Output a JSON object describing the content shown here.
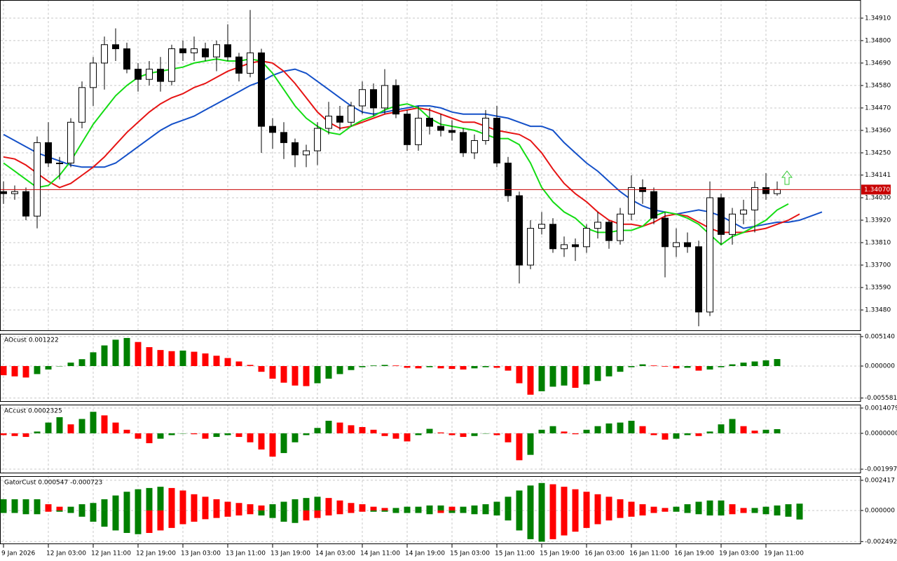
{
  "chart_data": [
    {
      "type": "candlestick",
      "open": [
        1.3406,
        1.3405,
        1.3406,
        1.3394,
        1.343,
        1.342,
        1.342,
        1.344,
        1.3457,
        1.3469,
        1.3478,
        1.3476,
        1.3466,
        1.3461,
        1.3466,
        1.346,
        1.3476,
        1.3474,
        1.3476,
        1.3472,
        1.3478,
        1.3472,
        1.3464,
        1.3474,
        1.3438,
        1.3435,
        1.343,
        1.3424,
        1.3426,
        1.3437,
        1.3443,
        1.344,
        1.3448,
        1.3456,
        1.3447,
        1.3458,
        1.3444,
        1.3429,
        1.3442,
        1.3438,
        1.3436,
        1.3435,
        1.3425,
        1.3431,
        1.3442,
        1.342,
        1.3404,
        1.337,
        1.3388,
        1.339,
        1.3378,
        1.338,
        1.3379,
        1.3388,
        1.3391,
        1.3382,
        1.3395,
        1.3408,
        1.3406,
        1.3393,
        1.3379,
        1.3381,
        1.3379,
        1.3347,
        1.3403,
        1.3385,
        1.3395,
        1.3397,
        1.3408,
        1.3405
      ],
      "high": [
        1.3411,
        1.3409,
        1.3408,
        1.3433,
        1.344,
        1.3423,
        1.3442,
        1.346,
        1.3472,
        1.3482,
        1.3486,
        1.3479,
        1.3469,
        1.347,
        1.3472,
        1.3478,
        1.348,
        1.3482,
        1.3479,
        1.348,
        1.3488,
        1.3474,
        1.3495,
        1.3476,
        1.3442,
        1.344,
        1.3432,
        1.3429,
        1.344,
        1.345,
        1.3448,
        1.345,
        1.346,
        1.3459,
        1.3466,
        1.3461,
        1.3446,
        1.3448,
        1.3447,
        1.3444,
        1.3441,
        1.3437,
        1.3434,
        1.3446,
        1.3448,
        1.3423,
        1.3406,
        1.3392,
        1.3396,
        1.3393,
        1.3384,
        1.3383,
        1.339,
        1.3396,
        1.3392,
        1.3398,
        1.3414,
        1.3412,
        1.3408,
        1.3396,
        1.3388,
        1.3386,
        1.3382,
        1.3411,
        1.3405,
        1.3398,
        1.3402,
        1.3411,
        1.3415,
        1.3411
      ],
      "low": [
        1.34,
        1.3402,
        1.3392,
        1.3388,
        1.3418,
        1.3412,
        1.3418,
        1.3437,
        1.3448,
        1.3456,
        1.347,
        1.3464,
        1.3455,
        1.3458,
        1.3455,
        1.3458,
        1.347,
        1.347,
        1.347,
        1.3465,
        1.347,
        1.346,
        1.3462,
        1.3425,
        1.3427,
        1.3422,
        1.3418,
        1.3418,
        1.3419,
        1.3434,
        1.3436,
        1.3438,
        1.3444,
        1.3443,
        1.3444,
        1.3442,
        1.3426,
        1.3426,
        1.3434,
        1.3433,
        1.3431,
        1.3423,
        1.3422,
        1.3429,
        1.3418,
        1.3401,
        1.3361,
        1.3368,
        1.3385,
        1.3376,
        1.3374,
        1.3372,
        1.3376,
        1.3383,
        1.3378,
        1.338,
        1.3392,
        1.34,
        1.339,
        1.3364,
        1.3374,
        1.3376,
        1.334,
        1.3345,
        1.338,
        1.338,
        1.339,
        1.3386,
        1.3402,
        1.3404
      ],
      "close": [
        1.3405,
        1.3406,
        1.3394,
        1.343,
        1.342,
        1.342,
        1.344,
        1.3457,
        1.3469,
        1.3478,
        1.3476,
        1.3466,
        1.3461,
        1.3466,
        1.346,
        1.3476,
        1.3474,
        1.3476,
        1.3472,
        1.3478,
        1.3472,
        1.3464,
        1.3474,
        1.3438,
        1.3435,
        1.343,
        1.3424,
        1.3426,
        1.3437,
        1.3443,
        1.344,
        1.3448,
        1.3456,
        1.3447,
        1.3458,
        1.3444,
        1.3429,
        1.3442,
        1.3438,
        1.3436,
        1.3435,
        1.3425,
        1.3431,
        1.3442,
        1.342,
        1.3404,
        1.337,
        1.3388,
        1.339,
        1.3378,
        1.338,
        1.3379,
        1.3388,
        1.3391,
        1.3382,
        1.3395,
        1.3408,
        1.3406,
        1.3393,
        1.3379,
        1.3381,
        1.3379,
        1.3347,
        1.3403,
        1.3385,
        1.3395,
        1.3397,
        1.3408,
        1.3405,
        1.3407
      ],
      "up_color": "#ffffff",
      "down_color": "#000000",
      "lines": [
        {
          "color": "#1450c8",
          "values": [
            1.3434,
            1.3431,
            1.3428,
            1.3425,
            1.3423,
            1.3421,
            1.3419,
            1.3418,
            1.3418,
            1.3418,
            1.342,
            1.3424,
            1.3428,
            1.3432,
            1.3436,
            1.3439,
            1.3441,
            1.3443,
            1.3446,
            1.3449,
            1.3452,
            1.3455,
            1.3458,
            1.346,
            1.3463,
            1.3465,
            1.3466,
            1.3464,
            1.346,
            1.3456,
            1.3452,
            1.3448,
            1.3445,
            1.3444,
            1.3445,
            1.3446,
            1.3447,
            1.3448,
            1.3448,
            1.3447,
            1.3445,
            1.3444,
            1.3444,
            1.3444,
            1.3443,
            1.3442,
            1.344,
            1.3438,
            1.3438,
            1.3436,
            1.343,
            1.3425,
            1.342,
            1.3416,
            1.3411,
            1.3406,
            1.3402,
            1.3399,
            1.3397,
            1.3396,
            1.3395,
            1.3396,
            1.3397,
            1.3396,
            1.3394,
            1.3391,
            1.3388,
            1.3389,
            1.339,
            1.3391,
            1.3391,
            1.3392,
            1.3394,
            1.3396
          ]
        },
        {
          "color": "#e61414",
          "values": [
            1.3423,
            1.3422,
            1.3419,
            1.3415,
            1.3411,
            1.3408,
            1.341,
            1.3414,
            1.3418,
            1.3423,
            1.3429,
            1.3435,
            1.344,
            1.3445,
            1.3449,
            1.3452,
            1.3454,
            1.3457,
            1.3459,
            1.3462,
            1.3465,
            1.3467,
            1.3469,
            1.347,
            1.3469,
            1.3465,
            1.3459,
            1.3452,
            1.3445,
            1.344,
            1.3437,
            1.3438,
            1.344,
            1.3442,
            1.3444,
            1.3445,
            1.3446,
            1.3447,
            1.3446,
            1.3444,
            1.3442,
            1.344,
            1.344,
            1.3438,
            1.3436,
            1.3435,
            1.3434,
            1.3431,
            1.3425,
            1.3417,
            1.341,
            1.3405,
            1.3401,
            1.3396,
            1.3392,
            1.339,
            1.339,
            1.3389,
            1.3391,
            1.3394,
            1.3395,
            1.3394,
            1.3391,
            1.3388,
            1.3386,
            1.3386,
            1.3386,
            1.3387,
            1.3388,
            1.339,
            1.3392,
            1.3395,
            null,
            null
          ]
        },
        {
          "color": "#14dc14",
          "values": [
            1.342,
            1.3416,
            1.3412,
            1.3408,
            1.3409,
            1.3414,
            1.3421,
            1.343,
            1.3439,
            1.3446,
            1.3453,
            1.3458,
            1.3462,
            1.3464,
            1.3465,
            1.3466,
            1.3467,
            1.3469,
            1.347,
            1.3471,
            1.347,
            1.347,
            1.3471,
            1.347,
            1.3464,
            1.3456,
            1.3448,
            1.3442,
            1.3438,
            1.3435,
            1.3434,
            1.3438,
            1.3441,
            1.3443,
            1.3446,
            1.3448,
            1.3449,
            1.3447,
            1.3442,
            1.3439,
            1.3438,
            1.3437,
            1.3436,
            1.3434,
            1.3432,
            1.3432,
            1.3429,
            1.342,
            1.3408,
            1.3401,
            1.3396,
            1.3393,
            1.3388,
            1.3386,
            1.3386,
            1.3387,
            1.3387,
            1.3389,
            1.3394,
            1.3396,
            1.3395,
            1.3393,
            1.339,
            1.3385,
            1.338,
            1.3384,
            1.3386,
            1.3389,
            1.3392,
            1.3397,
            1.34,
            null,
            null,
            null
          ]
        }
      ],
      "last_price": {
        "value": 1.3407,
        "label": "1.34070"
      },
      "last_price_color": "#c80000",
      "ylim": [
        1.33377,
        1.34999
      ],
      "yticks": [
        {
          "value": 1.3491,
          "label": "1.34910"
        },
        {
          "value": 1.348,
          "label": "1.34800"
        },
        {
          "value": 1.3469,
          "label": "1.34690"
        },
        {
          "value": 1.3458,
          "label": "1.34580"
        },
        {
          "value": 1.3447,
          "label": "1.34470"
        },
        {
          "value": 1.3436,
          "label": "1.34360"
        },
        {
          "value": 1.3425,
          "label": "1.34250"
        },
        {
          "value": 1.34141,
          "label": "1.34141"
        },
        {
          "value": 1.3403,
          "label": "1.34030"
        },
        {
          "value": 1.3392,
          "label": "1.33920"
        },
        {
          "value": 1.3381,
          "label": "1.33810"
        },
        {
          "value": 1.337,
          "label": "1.33700"
        },
        {
          "value": 1.3359,
          "label": "1.33590"
        },
        {
          "value": 1.3348,
          "label": "1.33480"
        }
      ],
      "xlim": [
        -0.3125,
        76.4375
      ],
      "xticks": [
        {
          "value": 0,
          "label": "9 Jan 2026"
        },
        {
          "value": 4,
          "label": "12 Jan 03:00"
        },
        {
          "value": 8,
          "label": "12 Jan 11:00"
        },
        {
          "value": 12,
          "label": "12 Jan 19:00"
        },
        {
          "value": 16,
          "label": "13 Jan 03:00"
        },
        {
          "value": 20,
          "label": "13 Jan 11:00"
        },
        {
          "value": 24,
          "label": "13 Jan 19:00"
        },
        {
          "value": 28,
          "label": "14 Jan 03:00"
        },
        {
          "value": 32,
          "label": "14 Jan 11:00"
        },
        {
          "value": 36,
          "label": "14 Jan 19:00"
        },
        {
          "value": 40,
          "label": "15 Jan 03:00"
        },
        {
          "value": 44,
          "label": "15 Jan 11:00"
        },
        {
          "value": 48,
          "label": "15 Jan 19:00"
        },
        {
          "value": 52,
          "label": "16 Jan 03:00"
        },
        {
          "value": 56,
          "label": "16 Jan 11:00"
        },
        {
          "value": 60,
          "label": "16 Jan 19:00"
        },
        {
          "value": 64,
          "label": "19 Jan 03:00"
        },
        {
          "value": 68,
          "label": "19 Jan 11:00"
        }
      ],
      "grid": true
    },
    {
      "type": "bar",
      "title": "AOcust 0.001222",
      "values": [
        -0.0016,
        -0.0018,
        -0.002,
        -0.0014,
        -0.0006,
        0,
        0.0006,
        0.0012,
        0.0024,
        0.0036,
        0.0046,
        0.0049,
        0.0042,
        0.0033,
        0.0028,
        0.0026,
        0.0027,
        0.0025,
        0.0022,
        0.0018,
        0.0014,
        0.0008,
        0.0002,
        -0.001,
        -0.0022,
        -0.0029,
        -0.0034,
        -0.0035,
        -0.003,
        -0.0022,
        -0.0014,
        -0.0007,
        -0.0002,
        0.0001,
        0.0002,
        0.0001,
        -0.0003,
        -0.0004,
        -0.0002,
        -0.0004,
        -0.0005,
        -0.0006,
        -0.0004,
        -0.0002,
        -0.0003,
        -0.0008,
        -0.003,
        -0.005,
        -0.0044,
        -0.0036,
        -0.0034,
        -0.0038,
        -0.0032,
        -0.0026,
        -0.0018,
        -0.001,
        -0.0002,
        0.0003,
        0.0001,
        -0.0001,
        -0.0004,
        -0.0003,
        -0.0008,
        -0.0006,
        -0.0002,
        0.0003,
        0.0006,
        0.0008,
        0.001,
        0.001222
      ],
      "up_color": "#008000",
      "down_color": "#ff0000",
      "ylim": [
        -0.00624,
        0.00563
      ],
      "yticks": [
        {
          "value": 0.00514,
          "label": "0.005140"
        },
        {
          "value": 0,
          "label": "0.000000"
        },
        {
          "value": -0.005581,
          "label": "-0.005581"
        }
      ],
      "grid": true
    },
    {
      "type": "bar",
      "title": "ACcust 0.0002325",
      "values": [
        -0.0001,
        -0.00015,
        -0.0002,
        0.0001,
        0.0006,
        0.0009,
        0.0005,
        0.0008,
        0.0012,
        0.001,
        0.0006,
        0.0002,
        -0.0003,
        -0.00055,
        -0.0003,
        -0.0001,
        0,
        -5e-05,
        -0.0003,
        -0.0002,
        -0.0001,
        -0.0002,
        -0.0005,
        -0.0009,
        -0.0013,
        -0.0011,
        -0.0005,
        -0.0001,
        0.0003,
        0.0007,
        0.0006,
        0.00045,
        0.00035,
        0.0002,
        -0.00015,
        -0.0003,
        -0.00045,
        -0.0001,
        0.00025,
        5e-05,
        -0.0001,
        -0.0002,
        -0.00015,
        0,
        -0.0001,
        -0.0005,
        -0.0015,
        -0.0012,
        0.0002,
        0.0004,
        0.0001,
        -5e-05,
        0.0002,
        0.0004,
        0.00055,
        0.0006,
        0.0007,
        0.0004,
        -0.0001,
        -0.00035,
        -0.0003,
        -0.0001,
        -0.00015,
        0.0001,
        0.0005,
        0.0008,
        0.0004,
        0.00015,
        0.0002,
        0.0002325
      ],
      "up_color": "#008000",
      "down_color": "#ff0000",
      "ylim": [
        -0.00223,
        0.0016
      ],
      "yticks": [
        {
          "value": 0.0014079,
          "label": "0.0014079"
        },
        {
          "value": 0,
          "label": "0.0000000"
        },
        {
          "value": -0.0019978,
          "label": "-0.0019978"
        }
      ],
      "grid": true
    },
    {
      "type": "gator",
      "title": "GatorCust 0.000547 -0.000723",
      "upper": [
        0.0009,
        0.0009,
        0.0009,
        0.0009,
        0.0005,
        0.0003,
        0.0003,
        0.0005,
        0.0006,
        0.0009,
        0.0012,
        0.0015,
        0.0017,
        0.0018,
        0.0019,
        0.0018,
        0.0016,
        0.0013,
        0.0011,
        0.0009,
        0.0007,
        0.0006,
        0.0005,
        0.0004,
        0.0005,
        0.0007,
        0.0009,
        0.001,
        0.0011,
        0.001,
        0.0008,
        0.0006,
        0.0005,
        0.0003,
        0.0002,
        0.0002,
        0.0003,
        0.0003,
        0.0004,
        0.0004,
        0.0003,
        0.0003,
        0.0004,
        0.0005,
        0.0007,
        0.0011,
        0.0016,
        0.002,
        0.0022,
        0.0021,
        0.0019,
        0.0017,
        0.0015,
        0.0013,
        0.0011,
        0.0009,
        0.0007,
        0.0005,
        0.0003,
        0.0002,
        0.0003,
        0.0005,
        0.0007,
        0.0008,
        0.0008,
        0.0005,
        0.0002,
        0.0002,
        0.0003,
        0.0004,
        0.0005,
        0.000547
      ],
      "lower": [
        -0.0002,
        -0.0002,
        -0.0003,
        -0.0003,
        -0.0001,
        -0.0001,
        -0.0002,
        -0.0005,
        -0.0009,
        -0.0013,
        -0.0016,
        -0.0018,
        -0.0019,
        -0.0018,
        -0.0016,
        -0.0014,
        -0.0011,
        -0.0009,
        -0.0007,
        -0.0006,
        -0.0005,
        -0.0004,
        -0.0003,
        -0.0004,
        -0.0006,
        -0.0009,
        -0.001,
        -0.0008,
        -0.0006,
        -0.0004,
        -0.0003,
        -0.0002,
        -0.0001,
        -0.0001,
        -0.0001,
        -0.0002,
        -0.0002,
        -0.0002,
        -0.0003,
        -0.0002,
        -0.0002,
        -0.0002,
        -0.0003,
        -0.0003,
        -0.0004,
        -0.0008,
        -0.0016,
        -0.0023,
        -0.0025,
        -0.0023,
        -0.002,
        -0.0017,
        -0.0014,
        -0.0011,
        -0.0008,
        -0.0006,
        -0.0005,
        -0.0004,
        -0.0002,
        -0.0001,
        -0.0001,
        -0.0002,
        -0.0003,
        -0.0004,
        -0.0004,
        -0.0003,
        -0.0002,
        -0.0002,
        -0.0003,
        -0.0004,
        -0.0005,
        -0.000723
      ],
      "up_color": "#008000",
      "down_color": "#ff0000",
      "ylim": [
        -0.0027,
        0.00275
      ],
      "yticks": [
        {
          "value": 0.002417,
          "label": "0.002417"
        },
        {
          "value": 0,
          "label": "0.000000"
        },
        {
          "value": -0.002492,
          "label": "-0.002492"
        }
      ],
      "grid": true
    }
  ]
}
